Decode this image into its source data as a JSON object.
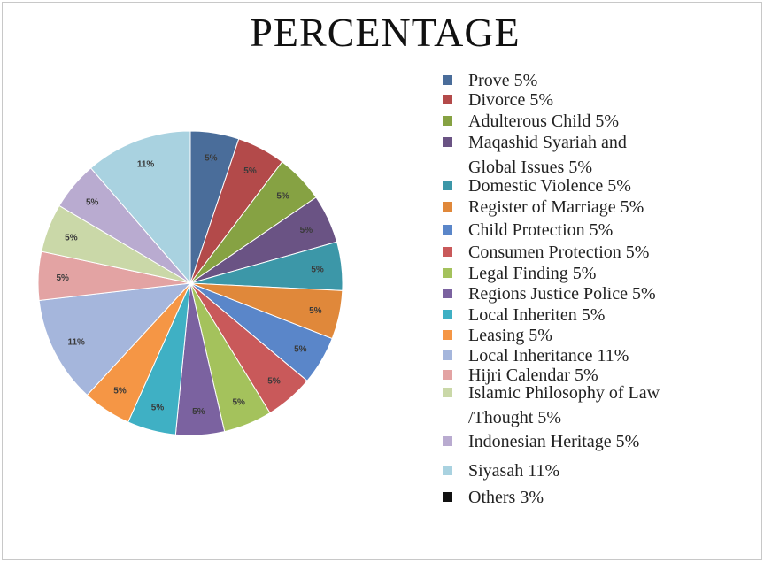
{
  "chart_data": {
    "type": "pie",
    "title": "PERCENTAGE",
    "legend_position": "right",
    "slices": [
      {
        "name": "Prove",
        "value": 5,
        "label": "5%",
        "legend": "Prove 5%",
        "color": "#4a6d9a"
      },
      {
        "name": "Divorce",
        "value": 5,
        "label": "5%",
        "legend": "Divorce 5%",
        "color": "#b34a4a"
      },
      {
        "name": "Adulterous Child",
        "value": 5,
        "label": "5%",
        "legend": "Adulterous Child 5%",
        "color": "#86a243"
      },
      {
        "name": "Maqashid Syariah and Global Issues",
        "value": 5,
        "label": "5%",
        "legend": [
          "Maqashid Syariah and",
          "Global Issues 5%"
        ],
        "color": "#6a5384"
      },
      {
        "name": "Domestic Violence",
        "value": 5,
        "label": "5%",
        "legend": "Domestic Violence 5%",
        "color": "#3c97a8"
      },
      {
        "name": "Register of Marriage",
        "value": 5,
        "label": "5%",
        "legend": "Register of Marriage 5%",
        "color": "#e0883a"
      },
      {
        "name": "Child Protection",
        "value": 5,
        "label": "5%",
        "legend": "Child Protection 5%",
        "color": "#5a86c9"
      },
      {
        "name": "Consumen Protection",
        "value": 5,
        "label": "5%",
        "legend": "Consumen Protection 5%",
        "color": "#c9595a"
      },
      {
        "name": "Legal Finding",
        "value": 5,
        "label": "5%",
        "legend": "Legal Finding 5%",
        "color": "#a4c25c"
      },
      {
        "name": "Regions Justice Police",
        "value": 5,
        "label": "5%",
        "legend": "Regions Justice Police 5%",
        "color": "#7b62a0"
      },
      {
        "name": "Local Inheriten",
        "value": 5,
        "label": "5%",
        "legend": "Local Inheriten 5%",
        "color": "#3fb0c4"
      },
      {
        "name": "Leasing",
        "value": 5,
        "label": "5%",
        "legend": "Leasing 5%",
        "color": "#f59645"
      },
      {
        "name": "Local Inheritance",
        "value": 11,
        "label": "11%",
        "legend": "Local Inheritance 11%",
        "color": "#a5b6dc"
      },
      {
        "name": "Hijri Calendar",
        "value": 5,
        "label": "5%",
        "legend": "Hijri Calendar 5%",
        "color": "#e3a3a3"
      },
      {
        "name": "Islamic Philosophy of Law /Thought",
        "value": 5,
        "label": "5%",
        "legend": [
          "Islamic Philosophy of Law",
          "/Thought 5%"
        ],
        "color": "#cad8a8"
      },
      {
        "name": "Indonesian Heritage",
        "value": 5,
        "label": "5%",
        "legend": "Indonesian Heritage 5%",
        "color": "#b9abd0"
      },
      {
        "name": "Siyasah",
        "value": 11,
        "label": "11%",
        "legend": "Siyasah 11%",
        "color": "#a9d2e0"
      },
      {
        "name": "Others",
        "value": 3,
        "label": "",
        "legend": "Others 3%",
        "color": "#111111",
        "in_pie": false
      }
    ]
  }
}
